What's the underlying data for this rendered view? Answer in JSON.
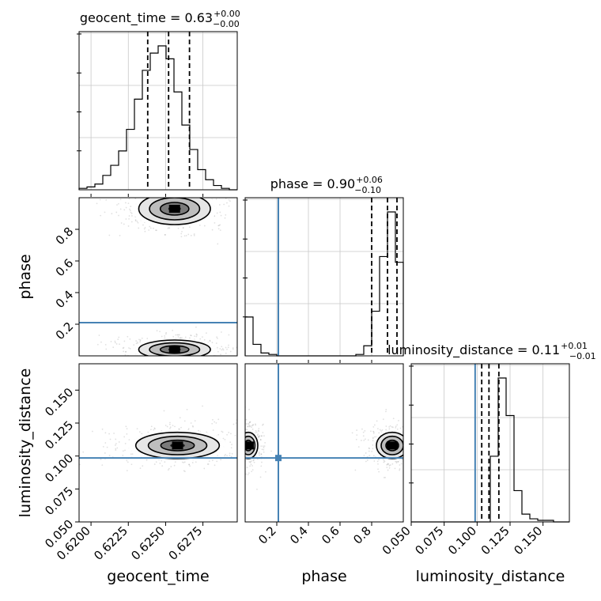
{
  "chart_data": {
    "type": "corner",
    "parameters": [
      {
        "name": "geocent_time",
        "axis_label": "geocent_time",
        "title_main": "geocent_time = 0.63",
        "title_plus": "+0.00",
        "title_minus": "−0.00",
        "range": [
          0.6192,
          0.6298
        ],
        "tick_values": [
          0.62,
          0.6225,
          0.625,
          0.6275
        ],
        "tick_labels": [
          "0.6200",
          "0.6225",
          "0.6250",
          "0.6275"
        ],
        "quantiles": [
          0.6238,
          0.6252,
          0.6266
        ],
        "truth": null
      },
      {
        "name": "phase",
        "axis_label": "phase",
        "title_main": "phase = 0.90",
        "title_plus": "+0.06",
        "title_minus": "−0.10",
        "range": [
          0.0,
          1.0
        ],
        "tick_values": [
          0.2,
          0.4,
          0.6,
          0.8
        ],
        "tick_labels": [
          "0.2",
          "0.4",
          "0.6",
          "0.8"
        ],
        "quantiles": [
          0.8,
          0.9,
          0.96
        ],
        "truth": 0.21
      },
      {
        "name": "luminosity_distance",
        "axis_label": "luminosity_distance",
        "title_main": "luminosity_distance = 0.11",
        "title_plus": "+0.01",
        "title_minus": "−0.01",
        "range": [
          0.05,
          0.17
        ],
        "tick_values": [
          0.05,
          0.075,
          0.1,
          0.125,
          0.15
        ],
        "tick_labels": [
          "0.050",
          "0.075",
          "0.100",
          "0.125",
          "0.150"
        ],
        "quantiles": [
          0.1035,
          0.109,
          0.1165
        ],
        "truth": 0.0985
      }
    ],
    "histograms": [
      {
        "param": "geocent_time",
        "heights": [
          0.01,
          0.02,
          0.04,
          0.1,
          0.17,
          0.27,
          0.42,
          0.63,
          0.83,
          0.95,
          1.0,
          0.91,
          0.68,
          0.45,
          0.28,
          0.14,
          0.07,
          0.03,
          0.01,
          0.0
        ]
      },
      {
        "param": "phase",
        "heights": [
          0.27,
          0.08,
          0.02,
          0.01,
          0.0,
          0.0,
          0.0,
          0.0,
          0.0,
          0.0,
          0.0,
          0.0,
          0.0,
          0.0,
          0.01,
          0.07,
          0.31,
          0.69,
          1.0,
          0.65
        ]
      },
      {
        "param": "luminosity_distance",
        "heights": [
          0.0,
          0.0,
          0.0,
          0.0,
          0.0,
          0.0,
          0.0,
          0.0,
          0.0,
          0.0,
          0.42,
          0.92,
          0.68,
          0.2,
          0.05,
          0.02,
          0.01,
          0.01,
          0.0,
          0.0
        ]
      }
    ],
    "contours_2d": [
      {
        "x": "geocent_time",
        "y": "phase",
        "modes": [
          {
            "center": [
              0.6256,
              0.93
            ],
            "spread": [
              0.0012,
              0.05
            ]
          },
          {
            "center": [
              0.6256,
              0.04
            ],
            "spread": [
              0.0012,
              0.03
            ]
          }
        ]
      },
      {
        "x": "geocent_time",
        "y": "luminosity_distance",
        "modes": [
          {
            "center": [
              0.6258,
              0.108
            ],
            "spread": [
              0.0014,
              0.005
            ]
          }
        ]
      },
      {
        "x": "phase",
        "y": "luminosity_distance",
        "modes": [
          {
            "center": [
              0.93,
              0.108
            ],
            "spread": [
              0.05,
              0.005
            ]
          },
          {
            "center": [
              0.02,
              0.108
            ],
            "spread": [
              0.03,
              0.005
            ]
          }
        ]
      }
    ],
    "truth_color": "#4682b4",
    "grid": true
  }
}
